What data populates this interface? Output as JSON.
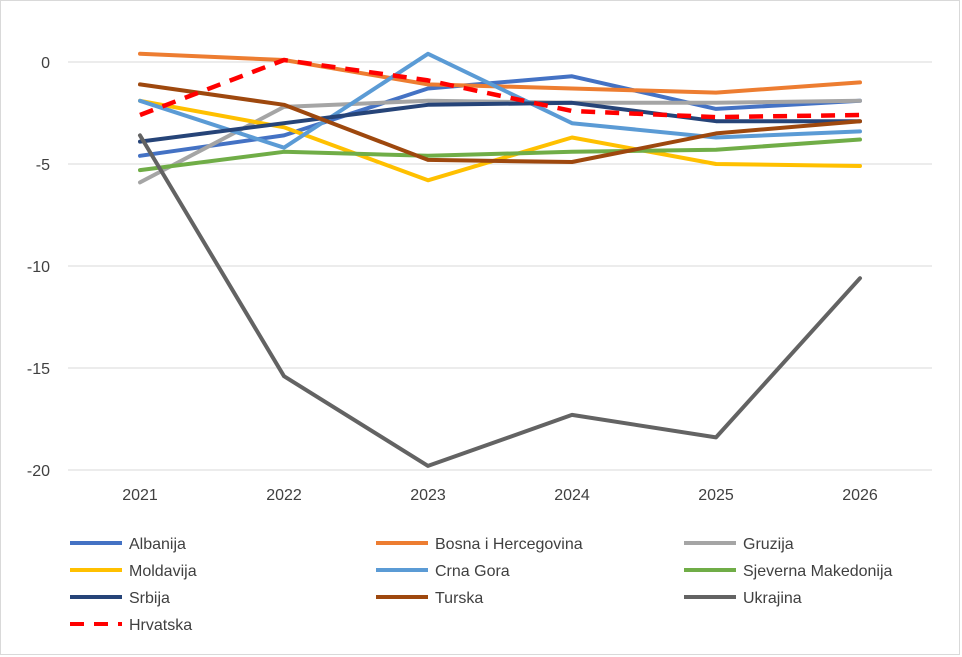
{
  "chart_data": {
    "type": "line",
    "title": "",
    "xlabel": "",
    "ylabel": "",
    "x": [
      "2021",
      "2022",
      "2023",
      "2024",
      "2025",
      "2026"
    ],
    "ylim": [
      -20,
      0
    ],
    "yticks": [
      0,
      -5,
      -10,
      -15,
      -20
    ],
    "ytick_labels": [
      "0",
      "-5",
      "-10",
      "-15",
      "-20"
    ],
    "grid": "horizontal",
    "legend_position": "bottom",
    "series": [
      {
        "name": "Albanija",
        "color": "#4472C4",
        "style": "solid",
        "values": [
          -4.6,
          -3.6,
          -1.3,
          -0.7,
          -2.3,
          -1.9
        ]
      },
      {
        "name": "Bosna i Hercegovina",
        "color": "#ED7D31",
        "style": "solid",
        "values": [
          0.4,
          0.1,
          -1.1,
          -1.3,
          -1.5,
          -1.0
        ]
      },
      {
        "name": "Gruzija",
        "color": "#A5A5A5",
        "style": "solid",
        "values": [
          -5.9,
          -2.2,
          -1.9,
          -2.0,
          -2.0,
          -1.9
        ]
      },
      {
        "name": "Moldavija",
        "color": "#FFC000",
        "style": "solid",
        "values": [
          -1.9,
          -3.2,
          -5.8,
          -3.7,
          -5.0,
          -5.1
        ]
      },
      {
        "name": "Crna Gora",
        "color": "#5B9BD5",
        "style": "solid",
        "values": [
          -1.9,
          -4.2,
          0.4,
          -3.0,
          -3.7,
          -3.4
        ]
      },
      {
        "name": "Sjeverna Makedonija",
        "color": "#70AD47",
        "style": "solid",
        "values": [
          -5.3,
          -4.4,
          -4.6,
          -4.4,
          -4.3,
          -3.8
        ]
      },
      {
        "name": "Srbija",
        "color": "#264478",
        "style": "solid",
        "values": [
          -3.9,
          -3.0,
          -2.1,
          -2.0,
          -2.9,
          -2.9
        ]
      },
      {
        "name": "Turska",
        "color": "#9E480E",
        "style": "solid",
        "values": [
          -1.1,
          -2.1,
          -4.8,
          -4.9,
          -3.5,
          -2.9
        ]
      },
      {
        "name": "Ukrajina",
        "color": "#636363",
        "style": "solid",
        "values": [
          -3.6,
          -15.4,
          -19.8,
          -17.3,
          -18.4,
          -10.6
        ]
      },
      {
        "name": "Hrvatska",
        "color": "#FF0000",
        "style": "dashed",
        "values": [
          -2.6,
          0.1,
          -0.9,
          -2.4,
          -2.7,
          -2.6
        ]
      }
    ]
  }
}
